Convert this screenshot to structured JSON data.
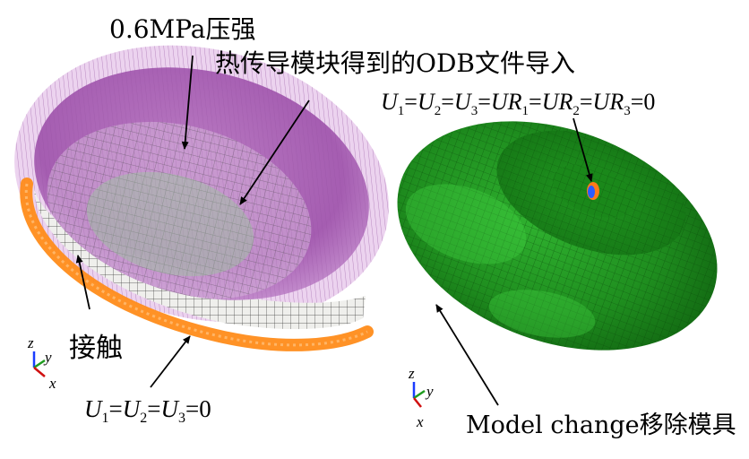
{
  "left_panel": {
    "pressure_label": "0.6MPa压强",
    "odb_import_label": "热传导模块得到的ODB文件导入",
    "contact_label": "接触",
    "bc_label": {
      "u1": "U",
      "s1": "1",
      "u2": "U",
      "s2": "2",
      "u3": "U",
      "s3": "3",
      "rhs": "=0"
    },
    "triad": {
      "z": "z",
      "y": "y",
      "x": "x"
    }
  },
  "right_panel": {
    "bc_label": {
      "u1": "U",
      "s1": "1",
      "u2": "U",
      "s2": "2",
      "u3": "U",
      "s3": "3",
      "ur1": "UR",
      "r1": "1",
      "ur2": "UR",
      "r2": "2",
      "ur3": "UR",
      "r3": "3",
      "rhs": "=0"
    },
    "model_change_label": "Model change移除模具",
    "triad": {
      "z": "z",
      "y": "y",
      "x": "x"
    }
  },
  "colors": {
    "pressure_arrows": "#c77fd0",
    "pressure_body": "#a85fb4",
    "mesh_body": "#e8e8e4",
    "contact_rim": "#ff8c1a",
    "shell_green": "#1e8a1e",
    "shell_light": "#3cc83c",
    "fixed_node": "#2a5cff"
  }
}
